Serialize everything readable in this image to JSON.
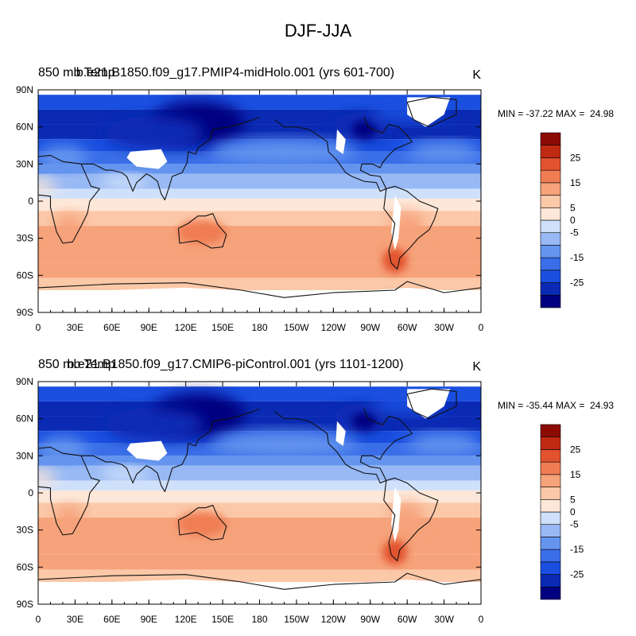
{
  "figure": {
    "title": "DJF-JJA"
  },
  "chart_data": [
    {
      "type": "heatmap",
      "title_left": "850 mb Temp",
      "title_center": "b.e21.B1850.f09_g17.PMIP4-midHolo.001 (yrs 601-700)",
      "units": "K",
      "stats": "MIN = -37.22 MAX =  24.98",
      "min": -37.22,
      "max": 24.98,
      "x_ticks": [
        "0",
        "30E",
        "60E",
        "90E",
        "120E",
        "150E",
        "180",
        "150W",
        "120W",
        "90W",
        "60W",
        "30W",
        "0"
      ],
      "y_ticks": [
        "90N",
        "60N",
        "30N",
        "0",
        "30S",
        "60S",
        "90S"
      ],
      "xlim": [
        0,
        360
      ],
      "ylim": [
        -90,
        90
      ],
      "colorbar_levels": [
        -30,
        -25,
        -20,
        -15,
        -10,
        -5,
        0,
        5,
        10,
        15,
        20,
        25,
        30
      ],
      "colorbar_labels": [
        "25",
        "15",
        "5",
        "0",
        "-5",
        "-15",
        "-25"
      ],
      "colors": [
        "#000080",
        "#0a2ab4",
        "#1a4fe0",
        "#3a6ee8",
        "#6494ee",
        "#98b9f4",
        "#cfe0fa",
        "#fde7d8",
        "#fbc8a8",
        "#f6a27a",
        "#f07d52",
        "#e2522e",
        "#c02a12",
        "#8c0a04"
      ]
    },
    {
      "type": "heatmap",
      "title_left": "850 mb Temp",
      "title_center": "b.e21.B1850.f09_g17.CMIP6-piControl.001 (yrs 1101-1200)",
      "units": "K",
      "stats": "MIN = -35.44 MAX =  24.93",
      "min": -35.44,
      "max": 24.93,
      "x_ticks": [
        "0",
        "30E",
        "60E",
        "90E",
        "120E",
        "150E",
        "180",
        "150W",
        "120W",
        "90W",
        "60W",
        "30W",
        "0"
      ],
      "y_ticks": [
        "90N",
        "60N",
        "30N",
        "0",
        "30S",
        "60S",
        "90S"
      ],
      "xlim": [
        0,
        360
      ],
      "ylim": [
        -90,
        90
      ],
      "colorbar_levels": [
        -30,
        -25,
        -20,
        -15,
        -10,
        -5,
        0,
        5,
        10,
        15,
        20,
        25,
        30
      ],
      "colorbar_labels": [
        "25",
        "15",
        "5",
        "0",
        "-5",
        "-15",
        "-25"
      ],
      "colors": [
        "#000080",
        "#0a2ab4",
        "#1a4fe0",
        "#3a6ee8",
        "#6494ee",
        "#98b9f4",
        "#cfe0fa",
        "#fde7d8",
        "#fbc8a8",
        "#f6a27a",
        "#f07d52",
        "#e2522e",
        "#c02a12",
        "#8c0a04"
      ]
    }
  ]
}
